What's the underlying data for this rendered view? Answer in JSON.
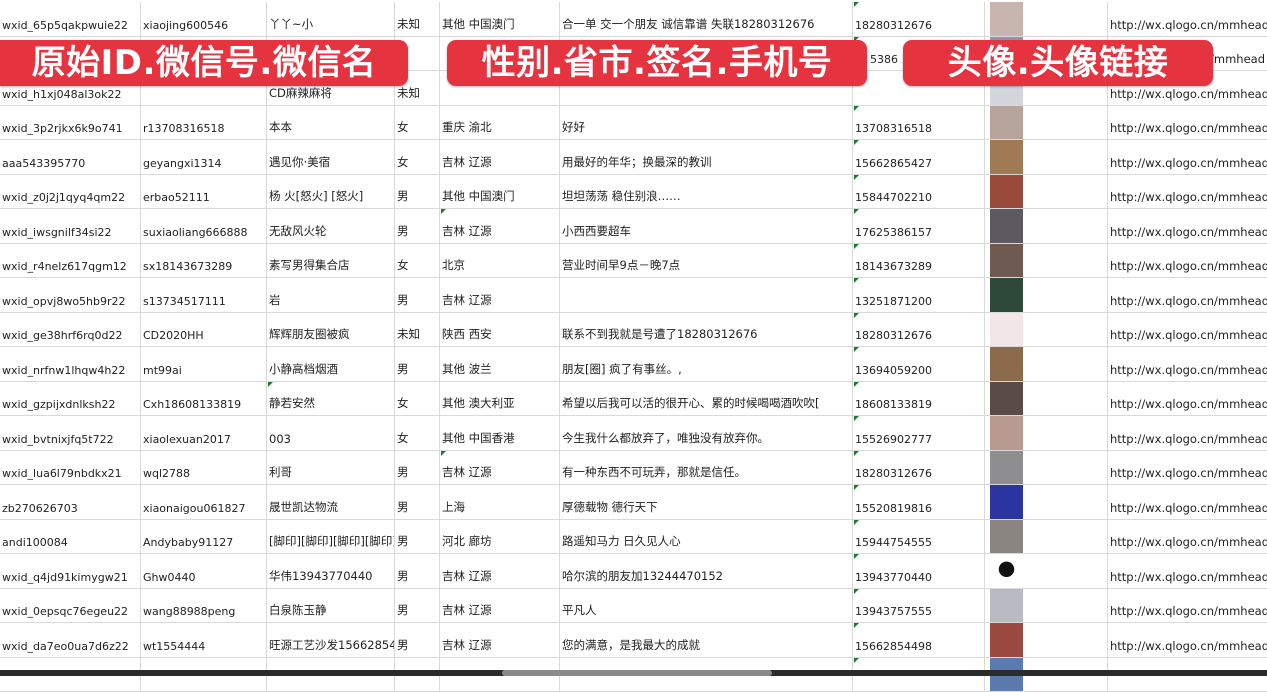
{
  "overlay_labels": {
    "badge_color": "#e5333f",
    "left": "原始ID.微信号.微信名",
    "middle": "性别.省市.签名.手机号",
    "right": "头像.头像链接"
  },
  "rows": [
    {
      "id": "wxid_65p5qakpwuie22",
      "wechat": "xiaojing600546",
      "name": "丫丫~小",
      "gender": "未知",
      "region": "其他 中国澳门",
      "signature": "合一单 交一个朋友 诚信靠谱 失联18280312676",
      "phone": "18280312676",
      "avatar_color": "#c9b5b0",
      "url": "http://wx.qlogo.cn/mmhead"
    },
    {
      "id": "",
      "wechat": "",
      "name": "",
      "gender": "",
      "region": "",
      "signature": "",
      "phone": "5386",
      "avatar_color": "#8a97b8",
      "url": "/mmhead"
    },
    {
      "id": "wxid_h1xj048al3ok22",
      "wechat": "",
      "name": "CD麻辣麻将",
      "gender": "未知",
      "region": "",
      "signature": "",
      "phone": "",
      "avatar_color": "#d3d6dc",
      "url": "http://wx.qlogo.cn/mmhead"
    },
    {
      "id": "wxid_3p2rjkx6k9o741",
      "wechat": "r13708316518",
      "name": "本本",
      "gender": "女",
      "region": "重庆 渝北",
      "signature": "好好",
      "phone": "13708316518",
      "avatar_color": "#b7a49a",
      "url": "http://wx.qlogo.cn/mmhead"
    },
    {
      "id": "aaa543395770",
      "wechat": "geyangxi1314",
      "name": "遇见你·美宿",
      "gender": "女",
      "region": "吉林 辽源",
      "signature": "用最好的年华；换最深的教训",
      "phone": "15662865427",
      "avatar_color": "#a07a55",
      "url": "http://wx.qlogo.cn/mmhead"
    },
    {
      "id": "wxid_z0j2j1qyq4qm22",
      "wechat": "erbao52111",
      "name": "杨 火[怒火] [怒火]",
      "gender": "男",
      "region": "其他 中国澳门",
      "signature": "坦坦荡荡 稳住别浪……",
      "phone": "15844702210",
      "avatar_color": "#9a4a3a",
      "url": "http://wx.qlogo.cn/mmhead"
    },
    {
      "id": "wxid_iwsgnilf34si22",
      "wechat": "suxiaoliang666888",
      "name": "无敌风火轮",
      "gender": "男",
      "region": "吉林 辽源",
      "signature": "小西西要超车",
      "phone": "17625386157",
      "avatar_color": "#5c5a60",
      "url": "http://wx.qlogo.cn/mmhead"
    },
    {
      "id": "wxid_r4nelz617qgm12",
      "wechat": "sx18143673289",
      "name": "素写男得集合店",
      "gender": "女",
      "region": "北京",
      "signature": "营业时间早9点－晚7点",
      "phone": "18143673289",
      "avatar_color": "#6e5a50",
      "url": "http://wx.qlogo.cn/mmhead"
    },
    {
      "id": "wxid_opvj8wo5hb9r22",
      "wechat": "s13734517111",
      "name": "岩",
      "gender": "男",
      "region": "吉林 辽源",
      "signature": "",
      "phone": "13251871200",
      "avatar_color": "#2f4a3a",
      "url": "http://wx.qlogo.cn/mmhead"
    },
    {
      "id": "wxid_ge38hrf6rq0d22",
      "wechat": "CD2020HH",
      "name": "辉辉朋友圈被疯",
      "gender": "未知",
      "region": "陕西 西安",
      "signature": "联系不到我就是号遭了18280312676",
      "phone": "18280312676",
      "avatar_color": "#f3e6e6",
      "url": "http://wx.qlogo.cn/mmhead"
    },
    {
      "id": "wxid_nrfnw1lhqw4h22",
      "wechat": "mt99ai",
      "name": "小静高档烟酒",
      "gender": "男",
      "region": "其他 波兰",
      "signature": "朋友[圈] 疯了有事丝。,",
      "phone": "13694059200",
      "avatar_color": "#8c6a4c",
      "url": "http://wx.qlogo.cn/mmhead"
    },
    {
      "id": "wxid_gzpijxdnlksh22",
      "wechat": "Cxh18608133819",
      "name": "静若安然",
      "gender": "女",
      "region": "其他 澳大利亚",
      "signature": "希望以后我可以活的很开心、累的时候喝喝酒吹吹[",
      "phone": "18608133819",
      "avatar_color": "#5a4a48",
      "url": "http://wx.qlogo.cn/mmhead"
    },
    {
      "id": "wxid_bvtnixjfq5t722",
      "wechat": "xiaolexuan2017",
      "name": "003",
      "gender": "女",
      "region": "其他 中国香港",
      "signature": "今生我什么都放弃了，唯独没有放弃你。",
      "phone": "15526902777",
      "avatar_color": "#b89a90",
      "url": "http://wx.qlogo.cn/mmhead"
    },
    {
      "id": "wxid_lua6l79nbdkx21",
      "wechat": "wql2788",
      "name": "利哥",
      "gender": "男",
      "region": "吉林 辽源",
      "signature": "有一种东西不可玩弄，那就是信任。",
      "phone": "18280312676",
      "avatar_color": "#8e8e90",
      "url": "http://wx.qlogo.cn/mmhead"
    },
    {
      "id": "zb270626703",
      "wechat": "xiaonaigou061827",
      "name": "晟世凯达物流",
      "gender": "男",
      "region": "上海",
      "signature": "厚德载物 德行天下",
      "phone": "15520819816",
      "avatar_color": "#2a35a0",
      "url": "http://wx.qlogo.cn/mmhead"
    },
    {
      "id": "andi100084",
      "wechat": "Andybaby91127",
      "name": "[脚印][脚印][脚印][脚印]",
      "gender": "男",
      "region": "河北 廊坊",
      "signature": "路遥知马力 日久见人心",
      "phone": "15944754555",
      "avatar_color": "#8a8580",
      "url": "http://wx.qlogo.cn/mmhead"
    },
    {
      "id": "wxid_q4jd91kimygw21",
      "wechat": "Ghw0440",
      "name": "华伟13943770440",
      "gender": "男",
      "region": "吉林 辽源",
      "signature": "哈尔滨的朋友加13244470152",
      "phone": "13943770440",
      "avatar_color": "#ffffff",
      "url": "http://wx.qlogo.cn/mmhead"
    },
    {
      "id": "wxid_0epsqc76egeu22",
      "wechat": "wang88988peng",
      "name": "白泉陈玉静",
      "gender": "男",
      "region": "吉林 辽源",
      "signature": "平凡人",
      "phone": "13943757555",
      "avatar_color": "#b8bcc2",
      "url": "http://wx.qlogo.cn/mmhead"
    },
    {
      "id": "wxid_da7eo0ua7d6z22",
      "wechat": "wt1554444",
      "name": "旺源工艺沙发15662854",
      "gender": "男",
      "region": "吉林 辽源",
      "signature": "您的满意，是我最大的成就",
      "phone": "15662854498",
      "avatar_color": "#9a4a40",
      "url": "http://wx.qlogo.cn/mmhead"
    },
    {
      "id": "",
      "wechat": "",
      "name": "",
      "gender": "",
      "region": "",
      "signature": "",
      "phone": "",
      "avatar_color": "#5a7ab0",
      "url": ""
    }
  ]
}
